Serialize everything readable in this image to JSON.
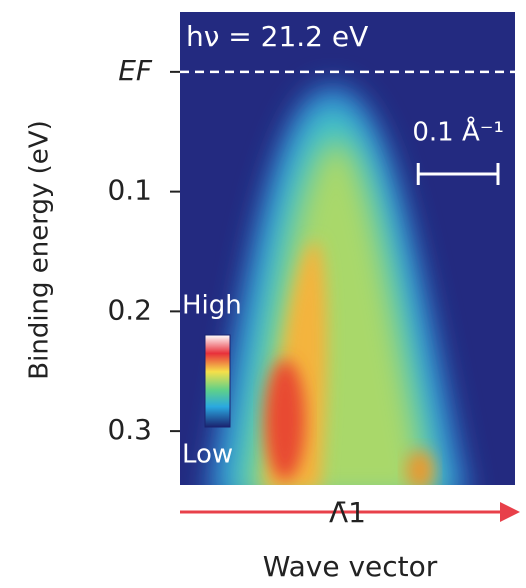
{
  "chart_data": {
    "type": "heatmap",
    "title": "hν = 21.2 eV",
    "y_label": "Binding energy (eV)",
    "x_label": "Wave vector",
    "ylim": [
      -0.05,
      0.345
    ],
    "yticks": [
      {
        "value": 0,
        "label": "EF"
      },
      0.1,
      0.2,
      0.3
    ],
    "xlim": [
      -0.21,
      0.21
    ],
    "x_marker": {
      "value": 0,
      "label": "Λ̄1"
    },
    "scale_bar": {
      "length": 0.1,
      "label": "0.1 Å⁻¹"
    },
    "colorbar_labels": [
      "High",
      "Low"
    ]
  }
}
